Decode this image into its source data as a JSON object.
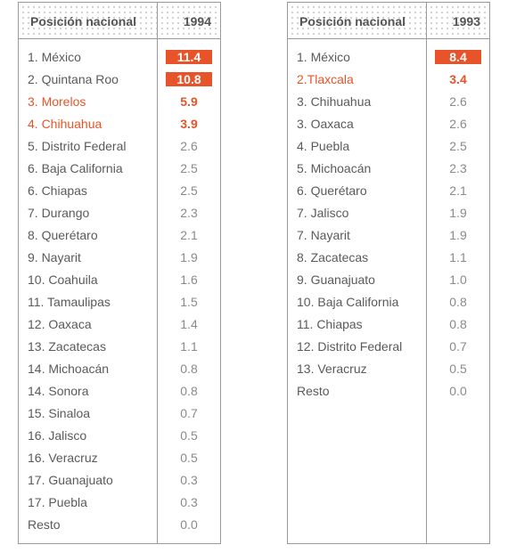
{
  "colors": {
    "accent": "#e8542a",
    "text": "#5a5a5a",
    "muted": "#8a8a8a",
    "border": "#9a9a9a"
  },
  "tables": [
    {
      "header": {
        "label": "Posición nacional",
        "year": "1994"
      },
      "rows": [
        {
          "name": "1. México",
          "value": "11.4",
          "style": "box"
        },
        {
          "name": "2. Quintana Roo",
          "value": "10.8",
          "style": "box"
        },
        {
          "name": "3. Morelos",
          "value": "5.9",
          "style": "hl"
        },
        {
          "name": "4. Chihuahua",
          "value": "3.9",
          "style": "hl"
        },
        {
          "name": "5. Distrito Federal",
          "value": "2.6",
          "style": ""
        },
        {
          "name": "6. Baja California",
          "value": "2.5",
          "style": ""
        },
        {
          "name": "6. Chiapas",
          "value": "2.5",
          "style": ""
        },
        {
          "name": "7. Durango",
          "value": "2.3",
          "style": ""
        },
        {
          "name": "8. Querétaro",
          "value": "2.1",
          "style": ""
        },
        {
          "name": "9. Nayarit",
          "value": "1.9",
          "style": ""
        },
        {
          "name": "10. Coahuila",
          "value": "1.6",
          "style": ""
        },
        {
          "name": "11. Tamaulipas",
          "value": "1.5",
          "style": ""
        },
        {
          "name": "12. Oaxaca",
          "value": "1.4",
          "style": ""
        },
        {
          "name": "13. Zacatecas",
          "value": "1.1",
          "style": ""
        },
        {
          "name": "14. Michoacán",
          "value": "0.8",
          "style": ""
        },
        {
          "name": "14. Sonora",
          "value": "0.8",
          "style": ""
        },
        {
          "name": "15. Sinaloa",
          "value": "0.7",
          "style": ""
        },
        {
          "name": "16. Jalisco",
          "value": "0.5",
          "style": ""
        },
        {
          "name": "16. Veracruz",
          "value": "0.5",
          "style": ""
        },
        {
          "name": "17. Guanajuato",
          "value": "0.3",
          "style": ""
        },
        {
          "name": "17. Puebla",
          "value": "0.3",
          "style": ""
        },
        {
          "name": "Resto",
          "value": "0.0",
          "style": ""
        }
      ]
    },
    {
      "header": {
        "label": "Posición nacional",
        "year": "1993"
      },
      "rows": [
        {
          "name": "1. México",
          "value": "8.4",
          "style": "box"
        },
        {
          "name": "2.Tlaxcala",
          "value": "3.4",
          "style": "hl"
        },
        {
          "name": "3. Chihuahua",
          "value": "2.6",
          "style": ""
        },
        {
          "name": "3. Oaxaca",
          "value": "2.6",
          "style": ""
        },
        {
          "name": "4. Puebla",
          "value": "2.5",
          "style": ""
        },
        {
          "name": "5. Michoacán",
          "value": "2.3",
          "style": ""
        },
        {
          "name": "6. Querétaro",
          "value": "2.1",
          "style": ""
        },
        {
          "name": "7. Jalisco",
          "value": "1.9",
          "style": ""
        },
        {
          "name": "7. Nayarit",
          "value": "1.9",
          "style": ""
        },
        {
          "name": "8. Zacatecas",
          "value": "1.1",
          "style": ""
        },
        {
          "name": "9. Guanajuato",
          "value": "1.0",
          "style": ""
        },
        {
          "name": "10. Baja California",
          "value": "0.8",
          "style": ""
        },
        {
          "name": "11. Chiapas",
          "value": "0.8",
          "style": ""
        },
        {
          "name": "12. Distrito Federal",
          "value": "0.7",
          "style": ""
        },
        {
          "name": "13. Veracruz",
          "value": "0.5",
          "style": ""
        },
        {
          "name": "Resto",
          "value": "0.0",
          "style": ""
        }
      ]
    }
  ]
}
